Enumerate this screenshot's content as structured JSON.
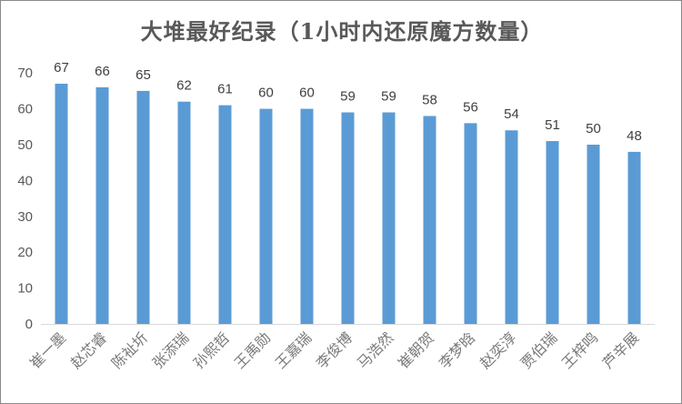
{
  "chart_data": {
    "type": "bar",
    "title": "大堆最好纪录（1小时内还原魔方数量）",
    "categories": [
      "崔一墨",
      "赵芯睿",
      "陈祉圻",
      "张添瑞",
      "孙熙哲",
      "王禹勋",
      "王嘉瑞",
      "李俊博",
      "马浩然",
      "崔朝贺",
      "李梦晗",
      "赵奕淳",
      "贾伯瑞",
      "王梓鸣",
      "芦辛展"
    ],
    "values": [
      67,
      66,
      65,
      62,
      61,
      60,
      60,
      59,
      59,
      58,
      56,
      54,
      51,
      50,
      48
    ],
    "yticks": [
      0,
      10,
      20,
      30,
      40,
      50,
      60,
      70
    ],
    "ylim": [
      0,
      75
    ],
    "grid": false,
    "legend": "none",
    "bar_color": "#5b9bd5",
    "axis_color": "#d9d9d9"
  }
}
